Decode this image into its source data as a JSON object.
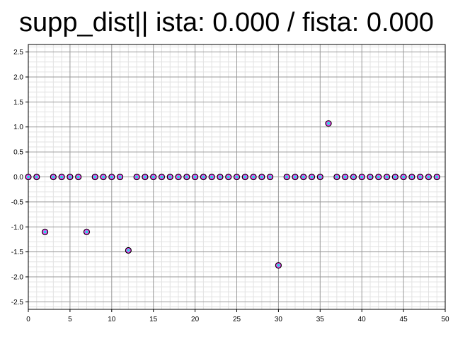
{
  "chart_data": {
    "type": "scatter",
    "title": "supp_dist|| ista: 0.000 / fista: 0.000",
    "xlabel": "",
    "ylabel": "",
    "xlim": [
      0,
      50
    ],
    "ylim": [
      -2.65,
      2.65
    ],
    "grid": true,
    "x_ticks": [
      0,
      5,
      10,
      15,
      20,
      25,
      30,
      35,
      40,
      45,
      50
    ],
    "x_tick_labels": [
      "0",
      "5",
      "10",
      "15",
      "20",
      "25",
      "30",
      "35",
      "40",
      "45",
      "50"
    ],
    "y_ticks": [
      2.5,
      2.0,
      1.5,
      1.0,
      0.5,
      0.0,
      -0.5,
      -1.0,
      -1.5,
      -2.0,
      -2.5
    ],
    "y_tick_labels": [
      "2.5",
      "2.0",
      "1.5",
      "1.0",
      "0.5",
      "0.0",
      "-0.5",
      "-1.0",
      "-1.5",
      "-2.0",
      "-2.5"
    ],
    "marker_colors": {
      "outer": "#ff44ff",
      "inner": "#22dddd",
      "edge": "#000000"
    },
    "series": [
      {
        "x": [
          0,
          1,
          2,
          3,
          4,
          5,
          6,
          7,
          8,
          9,
          10,
          11,
          12,
          13,
          14,
          15,
          16,
          17,
          18,
          19,
          20,
          21,
          22,
          23,
          24,
          25,
          26,
          27,
          28,
          29,
          30,
          31,
          32,
          33,
          34,
          35,
          36,
          37,
          38,
          39,
          40,
          41,
          42,
          43,
          44,
          45,
          46,
          47,
          48,
          49
        ],
        "values": [
          0,
          0,
          -1.1,
          0,
          0,
          0,
          0,
          -1.1,
          0,
          0,
          0,
          0,
          -1.47,
          0,
          0,
          0,
          0,
          0,
          0,
          0,
          0,
          0,
          0,
          0,
          0,
          0,
          0,
          0,
          0,
          0,
          -1.77,
          0,
          0,
          0,
          0,
          0,
          1.07,
          0,
          0,
          0,
          0,
          0,
          0,
          0,
          0,
          0,
          0,
          0,
          0,
          0
        ]
      }
    ]
  }
}
